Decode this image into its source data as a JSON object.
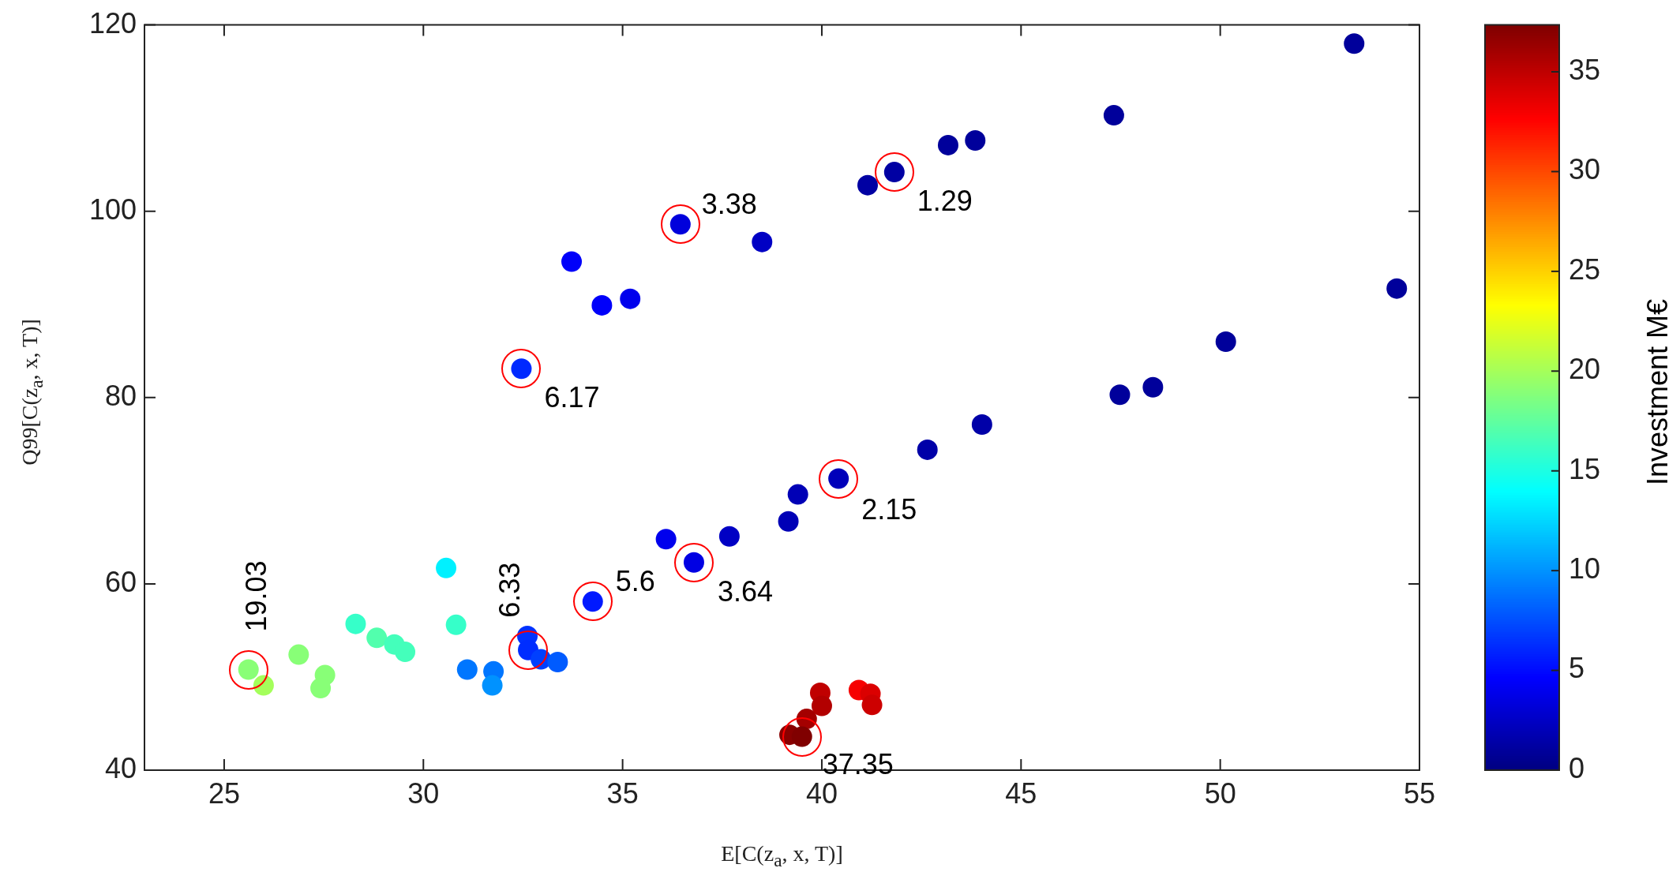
{
  "chart_data": {
    "type": "scatter",
    "xlabel": "E[C(z$_{a}$, x, T)]",
    "ylabel": "Q99[C(z$_{a}$, x, T)]",
    "clabel": "Investment M€",
    "x": [
      36.45,
      33.72,
      34.48,
      35.19,
      32.46,
      36.09,
      36.79,
      34.25,
      30.57,
      28.3,
      30.82,
      28.83,
      29.27,
      29.54,
      26.87,
      25.61,
      25.99,
      27.53,
      27.42,
      31.1,
      31.76,
      31.73,
      32.61,
      32.63,
      32.95,
      33.37,
      53.36,
      47.33,
      43.17,
      43.85,
      41.82,
      41.15,
      38.5,
      54.43,
      50.14,
      48.31,
      47.48,
      44.02,
      42.65,
      40.42,
      39.4,
      39.16,
      37.68,
      39.96,
      40.0,
      39.62,
      39.19,
      39.5,
      40.93,
      41.22,
      41.26
    ],
    "values": [
      98.6,
      94.6,
      89.9,
      90.6,
      83.1,
      64.8,
      62.3,
      58.1,
      61.7,
      55.7,
      55.6,
      54.2,
      53.5,
      52.7,
      52.4,
      50.8,
      49.1,
      50.2,
      48.8,
      50.8,
      50.6,
      49.1,
      54.4,
      52.9,
      51.9,
      51.6,
      118.0,
      110.3,
      107.1,
      107.6,
      104.2,
      102.8,
      96.7,
      91.7,
      86.0,
      81.1,
      80.3,
      77.1,
      74.4,
      71.3,
      69.6,
      66.7,
      65.1,
      48.3,
      46.9,
      45.5,
      43.8,
      43.6,
      48.6,
      48.2,
      47.0
    ],
    "cvalues": [
      3.38,
      4.5,
      4.5,
      4,
      6.17,
      4,
      3.64,
      5.6,
      13.5,
      16,
      16,
      17,
      16.5,
      16.5,
      19,
      19.03,
      20,
      19,
      19,
      9,
      9,
      10,
      6.5,
      6.33,
      7,
      8,
      1,
      1,
      1,
      1,
      1.29,
      1.3,
      2.5,
      1,
      1,
      1,
      1,
      1.5,
      1.5,
      2.15,
      2,
      2,
      2.5,
      35,
      35.5,
      36,
      37,
      37.35,
      33,
      34,
      34.5
    ],
    "xlim": [
      23,
      55
    ],
    "ylim": [
      40,
      120
    ],
    "xticks": [
      25,
      30,
      35,
      40,
      45,
      50,
      55
    ],
    "yticks": [
      40,
      60,
      80,
      100,
      120
    ],
    "clim": [
      0,
      37.35
    ],
    "cticks": [
      0,
      5,
      10,
      15,
      20,
      25,
      30,
      35
    ],
    "marker": "circle",
    "grid": false,
    "legend": false,
    "annotations": [
      {
        "text": "3.38",
        "x": 36.45,
        "y": 98.6
      },
      {
        "text": "1.29",
        "x": 41.82,
        "y": 104.2
      },
      {
        "text": "6.17",
        "x": 32.46,
        "y": 83.1
      },
      {
        "text": "2.15",
        "x": 40.42,
        "y": 71.3
      },
      {
        "text": "3.64",
        "x": 36.79,
        "y": 62.3
      },
      {
        "text": "5.6",
        "x": 34.25,
        "y": 58.1
      },
      {
        "text": "6.33",
        "x": 32.63,
        "y": 52.9
      },
      {
        "text": "19.03",
        "x": 25.61,
        "y": 50.8
      },
      {
        "text": "37.35",
        "x": 39.5,
        "y": 43.6
      }
    ]
  }
}
